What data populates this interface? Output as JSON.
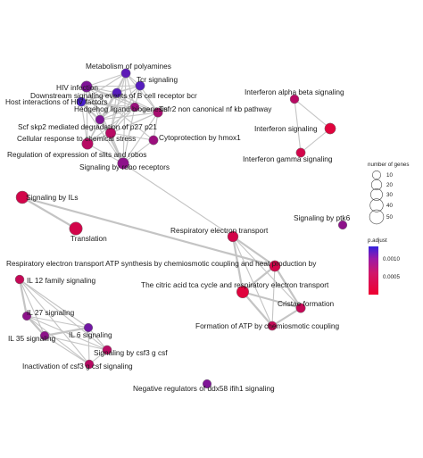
{
  "chart_data": {
    "type": "network",
    "description_source": "enrichment map of pathway terms",
    "nodes": [
      {
        "id": "metabolism_polyamines",
        "label": "Metabolism of polyamines",
        "gene_count": 14,
        "p_adjust": 0.00105
      },
      {
        "id": "hiv_infection",
        "label": "HIV infection",
        "gene_count": 25,
        "p_adjust": 0.0008
      },
      {
        "id": "tcr_signaling",
        "label": "Tcr signaling",
        "gene_count": 14,
        "p_adjust": 0.0011
      },
      {
        "id": "bcr_downstream",
        "label": "Downstream signaling events of B cell receptor bcr",
        "gene_count": 14,
        "p_adjust": 0.0011
      },
      {
        "id": "host_hiv",
        "label": "Host interactions of HIV factors",
        "gene_count": 14,
        "p_adjust": 0.0012
      },
      {
        "id": "hedgehog",
        "label": "Hedgehog ligand biogenesis",
        "gene_count": 12,
        "p_adjust": 0.0006
      },
      {
        "id": "tnfr2",
        "label": "Tnfr2 non canonical nf kb pathway",
        "gene_count": 15,
        "p_adjust": 0.0005
      },
      {
        "id": "scf_skp2",
        "label": "Scf skp2 mediated degradation of p27 p21",
        "gene_count": 12,
        "p_adjust": 0.0008
      },
      {
        "id": "chem_stress",
        "label": "Cellular response to chemical stress",
        "gene_count": 20,
        "p_adjust": 0.0004
      },
      {
        "id": "hmox1",
        "label": "Cytoprotection by hmox1",
        "gene_count": 14,
        "p_adjust": 0.0006
      },
      {
        "id": "slits_robos",
        "label": "Regulation of expression of slits and robos",
        "gene_count": 26,
        "p_adjust": 0.0004
      },
      {
        "id": "robo_receptors",
        "label": "Signaling by robo receptors",
        "gene_count": 27,
        "p_adjust": 0.0007
      },
      {
        "id": "ifn_ab",
        "label": "Interferon alpha beta signaling",
        "gene_count": 12,
        "p_adjust": 0.0004
      },
      {
        "id": "ifn_signaling",
        "label": "Interferon signaling",
        "gene_count": 24,
        "p_adjust": 0.0001
      },
      {
        "id": "ifn_gamma",
        "label": "Interferon gamma signaling",
        "gene_count": 14,
        "p_adjust": 0.0002
      },
      {
        "id": "ils",
        "label": "Signaling by ILs",
        "gene_count": 36,
        "p_adjust": 0.0002
      },
      {
        "id": "ptk6",
        "label": "Signaling by ptk6",
        "gene_count": 11,
        "p_adjust": 0.0007
      },
      {
        "id": "translation",
        "label": "Translation",
        "gene_count": 40,
        "p_adjust": 0.0002
      },
      {
        "id": "resp_transport",
        "label": "Respiratory electron transport",
        "gene_count": 22,
        "p_adjust": 0.0002
      },
      {
        "id": "resp_atp",
        "label": "Respiratory electron transport ATP synthesis by chemiosmotic coupling and heat production by",
        "gene_count": 24,
        "p_adjust": 0.0002
      },
      {
        "id": "il12",
        "label": "IL 12 family signaling",
        "gene_count": 12,
        "p_adjust": 0.0003
      },
      {
        "id": "tca_resp",
        "label": "The citric acid tca cycle and respiratory electron transport",
        "gene_count": 33,
        "p_adjust": 0.0001
      },
      {
        "id": "cristae",
        "label": "Cristae formation",
        "gene_count": 15,
        "p_adjust": 0.0003
      },
      {
        "id": "atp_formation",
        "label": "Formation of ATP by chemiosmotic coupling",
        "gene_count": 13,
        "p_adjust": 0.0003
      },
      {
        "id": "il27",
        "label": "IL 27 signaling",
        "gene_count": 11,
        "p_adjust": 0.0007
      },
      {
        "id": "il35",
        "label": "IL 35 signaling",
        "gene_count": 11,
        "p_adjust": 0.0007
      },
      {
        "id": "il6",
        "label": "IL 6 signaling",
        "gene_count": 11,
        "p_adjust": 0.0009
      },
      {
        "id": "csf3",
        "label": "Signaling by csf3 g csf",
        "gene_count": 13,
        "p_adjust": 0.0004
      },
      {
        "id": "csf3_inactivation",
        "label": "Inactivation of csf3 g csf signaling",
        "gene_count": 12,
        "p_adjust": 0.0004
      },
      {
        "id": "ddx58",
        "label": "Negative regulators of ddx58 ifih1 signaling",
        "gene_count": 11,
        "p_adjust": 0.0008
      }
    ],
    "edges": [
      [
        "metabolism_polyamines",
        "hiv_infection"
      ],
      [
        "metabolism_polyamines",
        "tcr_signaling"
      ],
      [
        "metabolism_polyamines",
        "bcr_downstream"
      ],
      [
        "metabolism_polyamines",
        "host_hiv"
      ],
      [
        "metabolism_polyamines",
        "hedgehog"
      ],
      [
        "metabolism_polyamines",
        "tnfr2"
      ],
      [
        "metabolism_polyamines",
        "scf_skp2"
      ],
      [
        "metabolism_polyamines",
        "chem_stress"
      ],
      [
        "metabolism_polyamines",
        "slits_robos"
      ],
      [
        "metabolism_polyamines",
        "robo_receptors"
      ],
      [
        "hiv_infection",
        "tcr_signaling"
      ],
      [
        "hiv_infection",
        "bcr_downstream"
      ],
      [
        "hiv_infection",
        "host_hiv"
      ],
      [
        "hiv_infection",
        "hedgehog"
      ],
      [
        "hiv_infection",
        "tnfr2"
      ],
      [
        "hiv_infection",
        "scf_skp2"
      ],
      [
        "hiv_infection",
        "chem_stress"
      ],
      [
        "hiv_infection",
        "slits_robos"
      ],
      [
        "hiv_infection",
        "robo_receptors"
      ],
      [
        "hiv_infection",
        "hmox1"
      ],
      [
        "tcr_signaling",
        "bcr_downstream"
      ],
      [
        "tcr_signaling",
        "host_hiv"
      ],
      [
        "tcr_signaling",
        "hedgehog"
      ],
      [
        "tcr_signaling",
        "tnfr2"
      ],
      [
        "tcr_signaling",
        "scf_skp2"
      ],
      [
        "tcr_signaling",
        "chem_stress"
      ],
      [
        "bcr_downstream",
        "host_hiv"
      ],
      [
        "bcr_downstream",
        "hedgehog"
      ],
      [
        "bcr_downstream",
        "tnfr2"
      ],
      [
        "bcr_downstream",
        "scf_skp2"
      ],
      [
        "bcr_downstream",
        "chem_stress"
      ],
      [
        "bcr_downstream",
        "slits_robos"
      ],
      [
        "host_hiv",
        "hedgehog"
      ],
      [
        "host_hiv",
        "tnfr2"
      ],
      [
        "host_hiv",
        "scf_skp2"
      ],
      [
        "host_hiv",
        "chem_stress"
      ],
      [
        "host_hiv",
        "slits_robos"
      ],
      [
        "host_hiv",
        "robo_receptors"
      ],
      [
        "hedgehog",
        "tnfr2"
      ],
      [
        "hedgehog",
        "scf_skp2"
      ],
      [
        "hedgehog",
        "chem_stress"
      ],
      [
        "hedgehog",
        "slits_robos"
      ],
      [
        "hedgehog",
        "robo_receptors"
      ],
      [
        "tnfr2",
        "scf_skp2"
      ],
      [
        "tnfr2",
        "chem_stress"
      ],
      [
        "tnfr2",
        "hmox1"
      ],
      [
        "tnfr2",
        "slits_robos"
      ],
      [
        "tnfr2",
        "robo_receptors"
      ],
      [
        "scf_skp2",
        "chem_stress"
      ],
      [
        "scf_skp2",
        "slits_robos"
      ],
      [
        "scf_skp2",
        "robo_receptors"
      ],
      [
        "chem_stress",
        "hmox1"
      ],
      [
        "chem_stress",
        "slits_robos"
      ],
      [
        "chem_stress",
        "robo_receptors"
      ],
      [
        "slits_robos",
        "robo_receptors"
      ],
      [
        "hmox1",
        "robo_receptors"
      ],
      [
        "robo_receptors",
        "resp_transport"
      ],
      [
        "ifn_ab",
        "ifn_signaling"
      ],
      [
        "ifn_ab",
        "ifn_gamma"
      ],
      [
        "ifn_signaling",
        "ifn_gamma"
      ],
      [
        "ils",
        "translation"
      ],
      [
        "ils",
        "resp_atp"
      ],
      [
        "resp_transport",
        "resp_atp"
      ],
      [
        "resp_transport",
        "tca_resp"
      ],
      [
        "resp_transport",
        "cristae"
      ],
      [
        "resp_transport",
        "atp_formation"
      ],
      [
        "resp_atp",
        "tca_resp"
      ],
      [
        "resp_atp",
        "cristae"
      ],
      [
        "resp_atp",
        "atp_formation"
      ],
      [
        "tca_resp",
        "cristae"
      ],
      [
        "tca_resp",
        "atp_formation"
      ],
      [
        "cristae",
        "atp_formation"
      ],
      [
        "il12",
        "il27"
      ],
      [
        "il12",
        "il35"
      ],
      [
        "il12",
        "il6"
      ],
      [
        "il12",
        "csf3"
      ],
      [
        "il12",
        "csf3_inactivation"
      ],
      [
        "il27",
        "il35"
      ],
      [
        "il27",
        "il6"
      ],
      [
        "il27",
        "csf3"
      ],
      [
        "il27",
        "csf3_inactivation"
      ],
      [
        "il35",
        "il6"
      ],
      [
        "il35",
        "csf3"
      ],
      [
        "il35",
        "csf3_inactivation"
      ],
      [
        "il6",
        "csf3"
      ],
      [
        "il6",
        "csf3_inactivation"
      ],
      [
        "csf3",
        "csf3_inactivation"
      ]
    ],
    "size_legend": {
      "title": "number of genes",
      "values": [
        10,
        20,
        30,
        40,
        50
      ]
    },
    "color_legend": {
      "title": "p.adjust",
      "tick_labels": [
        "0.0010",
        "0.0005"
      ],
      "tick_values": [
        0.001,
        0.0005
      ],
      "range": [
        0.0,
        0.00135
      ],
      "color_low": "#ee0030",
      "color_high": "#3322dd"
    }
  }
}
